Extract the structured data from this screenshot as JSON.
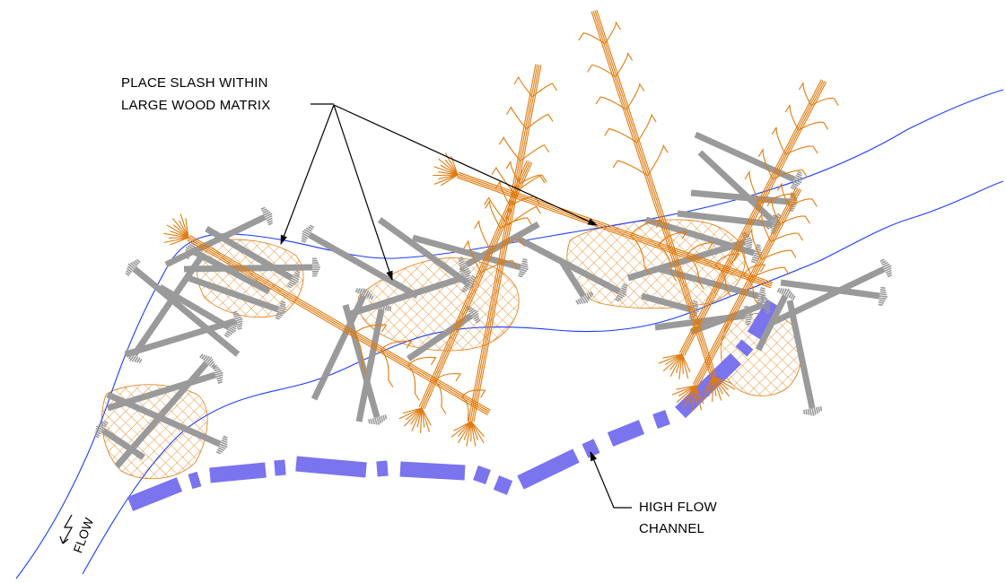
{
  "annotations": {
    "slash_line_1": "PLACE SLASH WITHIN",
    "slash_line_2": "LARGE WOOD MATRIX",
    "channel_line_1": "HIGH FLOW",
    "channel_line_2": "CHANNEL",
    "flow": "FLOW"
  },
  "colors": {
    "stream_bank": "#1a3cff",
    "tree": "#e07b10",
    "log": "#9a9a9a",
    "slash_hatch": "#e07b10",
    "high_flow_channel": "#7a74ee",
    "leader": "#000000"
  },
  "legend_items": [
    "stream-bank-line",
    "whole-tree-with-rootwad",
    "log-with-rootwad",
    "slash-patch",
    "high-flow-channel"
  ]
}
